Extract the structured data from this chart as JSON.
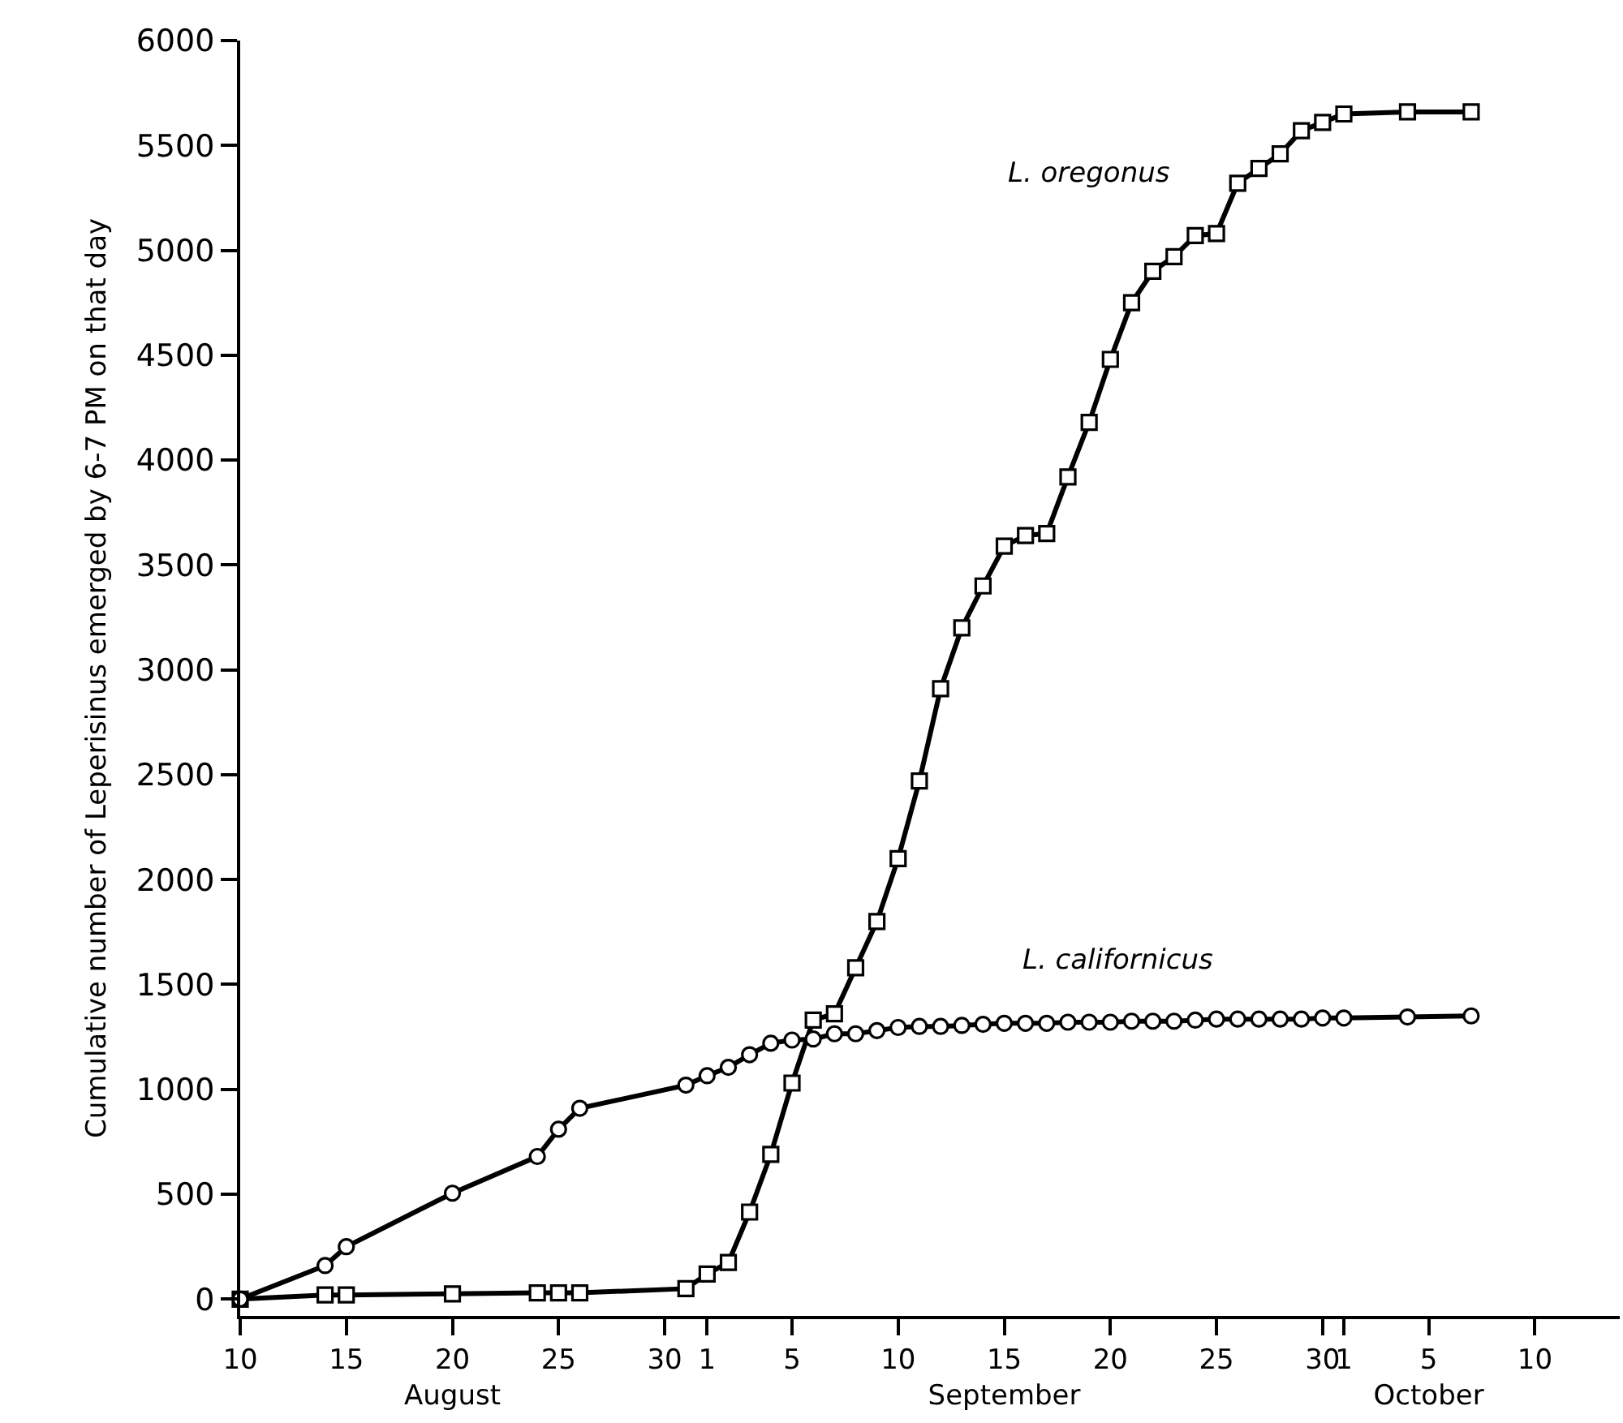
{
  "chart_data": {
    "type": "line",
    "ylabel": "Cumulative number of Leperisinus emerged by 6-7 PM on that day",
    "xlim": [
      "--08-10",
      "--10-14"
    ],
    "xticks": [
      {
        "value": "--08-10",
        "label": "10"
      },
      {
        "value": "--08-15",
        "label": "15"
      },
      {
        "value": "--08-20",
        "label": "20\nAugust"
      },
      {
        "value": "--08-25",
        "label": "25"
      },
      {
        "value": "--08-30",
        "label": "30"
      },
      {
        "value": "--09-01",
        "label": "1"
      },
      {
        "value": "--09-05",
        "label": "5"
      },
      {
        "value": "--09-10",
        "label": "10"
      },
      {
        "value": "--09-15",
        "label": "15\nSeptember"
      },
      {
        "value": "--09-20",
        "label": "20"
      },
      {
        "value": "--09-25",
        "label": "25"
      },
      {
        "value": "--09-30",
        "label": "30"
      },
      {
        "value": "--10-01",
        "label": "1"
      },
      {
        "value": "--10-05",
        "label": "5\nOctober"
      },
      {
        "value": "--10-10",
        "label": "10"
      }
    ],
    "ylim": [
      -80,
      6000
    ],
    "yticks": [
      0,
      500,
      1000,
      1500,
      2000,
      2500,
      3000,
      3500,
      4000,
      4500,
      5000,
      5500,
      6000
    ],
    "grid": false,
    "legend": false,
    "line_style": "solid",
    "series": [
      {
        "name": "L. oregonus",
        "color": "#000000",
        "marker": "square",
        "x": [
          "--08-10",
          "--08-14",
          "--08-15",
          "--08-20",
          "--08-24",
          "--08-25",
          "--08-26",
          "--08-31",
          "--09-01",
          "--09-02",
          "--09-03",
          "--09-04",
          "--09-05",
          "--09-06",
          "--09-07",
          "--09-08",
          "--09-09",
          "--09-10",
          "--09-11",
          "--09-12",
          "--09-13",
          "--09-14",
          "--09-15",
          "--09-16",
          "--09-17",
          "--09-18",
          "--09-19",
          "--09-20",
          "--09-21",
          "--09-22",
          "--09-23",
          "--09-24",
          "--09-25",
          "--09-26",
          "--09-27",
          "--09-28",
          "--09-29",
          "--09-30",
          "--10-01",
          "--10-04",
          "--10-07"
        ],
        "values": [
          0,
          20,
          20,
          25,
          30,
          30,
          30,
          50,
          120,
          175,
          415,
          690,
          1030,
          1330,
          1360,
          1580,
          1800,
          2100,
          2470,
          2910,
          3200,
          3400,
          3590,
          3640,
          3650,
          3920,
          4180,
          4480,
          4750,
          4900,
          4970,
          5070,
          5080,
          5320,
          5390,
          5460,
          5570,
          5610,
          5650,
          5660,
          5660
        ]
      },
      {
        "name": "L. californicus",
        "color": "#000000",
        "marker": "circle",
        "x": [
          "--08-10",
          "--08-14",
          "--08-15",
          "--08-20",
          "--08-24",
          "--08-25",
          "--08-26",
          "--08-31",
          "--09-01",
          "--09-02",
          "--09-03",
          "--09-04",
          "--09-05",
          "--09-06",
          "--09-07",
          "--09-08",
          "--09-09",
          "--09-10",
          "--09-11",
          "--09-12",
          "--09-13",
          "--09-14",
          "--09-15",
          "--09-16",
          "--09-17",
          "--09-18",
          "--09-19",
          "--09-20",
          "--09-21",
          "--09-22",
          "--09-23",
          "--09-24",
          "--09-25",
          "--09-26",
          "--09-27",
          "--09-28",
          "--09-29",
          "--09-30",
          "--10-01",
          "--10-04",
          "--10-07"
        ],
        "values": [
          0,
          160,
          250,
          505,
          680,
          810,
          910,
          1020,
          1065,
          1105,
          1165,
          1220,
          1235,
          1240,
          1265,
          1265,
          1280,
          1295,
          1300,
          1300,
          1305,
          1310,
          1315,
          1315,
          1315,
          1320,
          1320,
          1320,
          1325,
          1325,
          1325,
          1330,
          1335,
          1335,
          1335,
          1335,
          1335,
          1340,
          1340,
          1345,
          1350
        ]
      }
    ]
  }
}
